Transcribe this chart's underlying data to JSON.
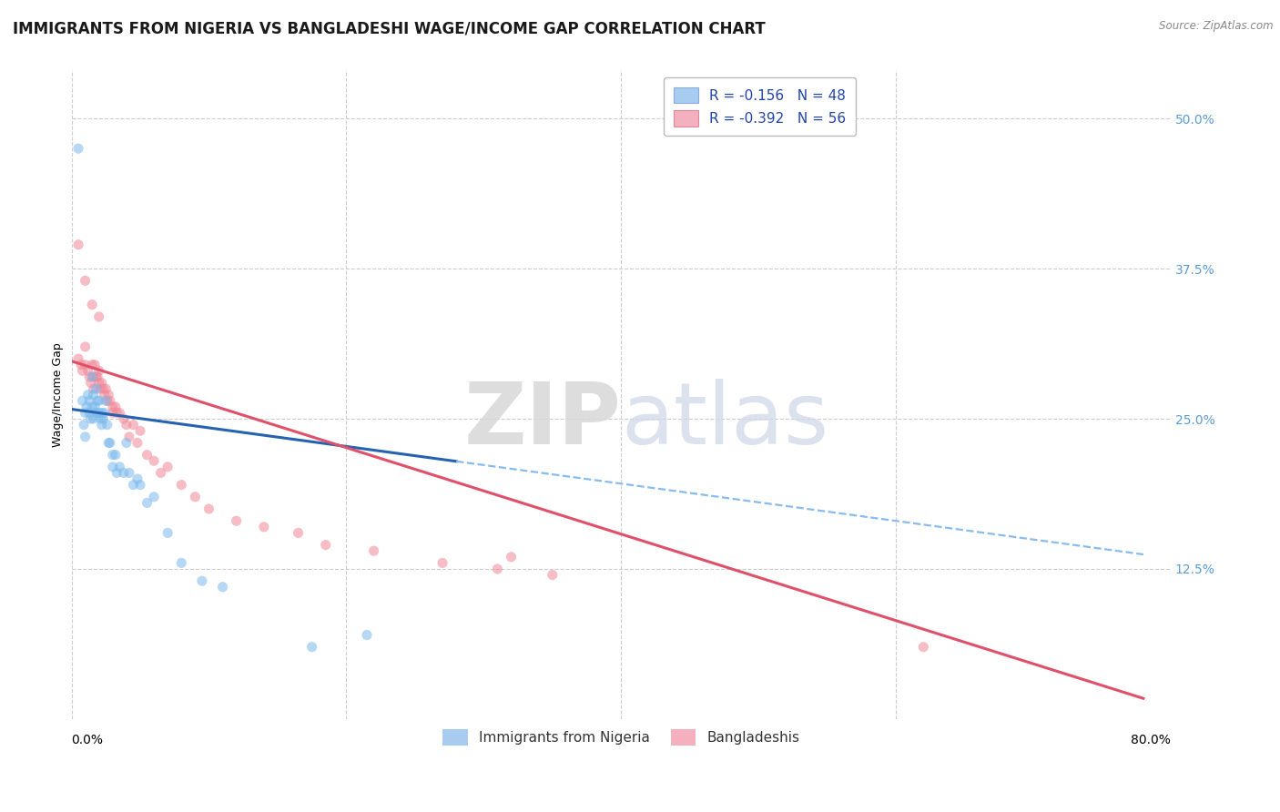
{
  "title": "IMMIGRANTS FROM NIGERIA VS BANGLADESHI WAGE/INCOME GAP CORRELATION CHART",
  "source": "Source: ZipAtlas.com",
  "ylabel": "Wage/Income Gap",
  "ytick_labels": [
    "12.5%",
    "25.0%",
    "37.5%",
    "50.0%"
  ],
  "ytick_vals": [
    0.125,
    0.25,
    0.375,
    0.5
  ],
  "xlim": [
    0.0,
    0.8
  ],
  "ylim": [
    0.0,
    0.54
  ],
  "series_nigeria": {
    "color": "#7ab8ed",
    "R": -0.156,
    "N": 48,
    "intercept": 0.258,
    "slope": -0.155,
    "line_end_x": 0.28,
    "line_color": "#2563b0"
  },
  "series_bangladeshi": {
    "color": "#f08898",
    "R": -0.392,
    "N": 56,
    "intercept": 0.298,
    "slope": -0.36,
    "line_color": "#e0506a"
  },
  "nigeria_x": [
    0.005,
    0.008,
    0.009,
    0.01,
    0.01,
    0.011,
    0.012,
    0.013,
    0.013,
    0.014,
    0.015,
    0.015,
    0.016,
    0.016,
    0.017,
    0.018,
    0.018,
    0.019,
    0.02,
    0.02,
    0.021,
    0.022,
    0.022,
    0.023,
    0.024,
    0.025,
    0.026,
    0.027,
    0.028,
    0.03,
    0.03,
    0.032,
    0.033,
    0.035,
    0.038,
    0.04,
    0.042,
    0.045,
    0.048,
    0.05,
    0.055,
    0.06,
    0.07,
    0.08,
    0.095,
    0.11,
    0.175,
    0.215
  ],
  "nigeria_y": [
    0.475,
    0.265,
    0.245,
    0.235,
    0.255,
    0.26,
    0.27,
    0.265,
    0.255,
    0.25,
    0.26,
    0.285,
    0.27,
    0.25,
    0.26,
    0.255,
    0.275,
    0.265,
    0.265,
    0.255,
    0.25,
    0.255,
    0.245,
    0.25,
    0.255,
    0.265,
    0.245,
    0.23,
    0.23,
    0.22,
    0.21,
    0.22,
    0.205,
    0.21,
    0.205,
    0.23,
    0.205,
    0.195,
    0.2,
    0.195,
    0.18,
    0.185,
    0.155,
    0.13,
    0.115,
    0.11,
    0.06,
    0.07
  ],
  "bangladeshi_x": [
    0.005,
    0.007,
    0.008,
    0.01,
    0.01,
    0.012,
    0.013,
    0.014,
    0.015,
    0.016,
    0.016,
    0.017,
    0.018,
    0.019,
    0.02,
    0.02,
    0.021,
    0.022,
    0.023,
    0.024,
    0.025,
    0.026,
    0.027,
    0.028,
    0.03,
    0.03,
    0.032,
    0.033,
    0.035,
    0.038,
    0.04,
    0.042,
    0.045,
    0.048,
    0.05,
    0.055,
    0.06,
    0.065,
    0.07,
    0.08,
    0.09,
    0.1,
    0.12,
    0.14,
    0.165,
    0.185,
    0.22,
    0.27,
    0.31,
    0.35,
    0.005,
    0.01,
    0.015,
    0.02,
    0.62,
    0.32
  ],
  "bangladeshi_y": [
    0.3,
    0.295,
    0.29,
    0.31,
    0.295,
    0.29,
    0.285,
    0.28,
    0.295,
    0.285,
    0.275,
    0.295,
    0.285,
    0.285,
    0.29,
    0.28,
    0.275,
    0.28,
    0.275,
    0.27,
    0.275,
    0.265,
    0.27,
    0.265,
    0.26,
    0.255,
    0.26,
    0.255,
    0.255,
    0.25,
    0.245,
    0.235,
    0.245,
    0.23,
    0.24,
    0.22,
    0.215,
    0.205,
    0.21,
    0.195,
    0.185,
    0.175,
    0.165,
    0.16,
    0.155,
    0.145,
    0.14,
    0.13,
    0.125,
    0.12,
    0.395,
    0.365,
    0.345,
    0.335,
    0.06,
    0.135
  ],
  "watermark_zip": "ZIP",
  "watermark_atlas": "atlas",
  "background_color": "#ffffff",
  "grid_color": "#cccccc",
  "title_fontsize": 12,
  "axis_label_fontsize": 9,
  "tick_fontsize": 10,
  "right_tick_color": "#5b9bd5",
  "scatter_alpha": 0.55,
  "scatter_size": 65
}
